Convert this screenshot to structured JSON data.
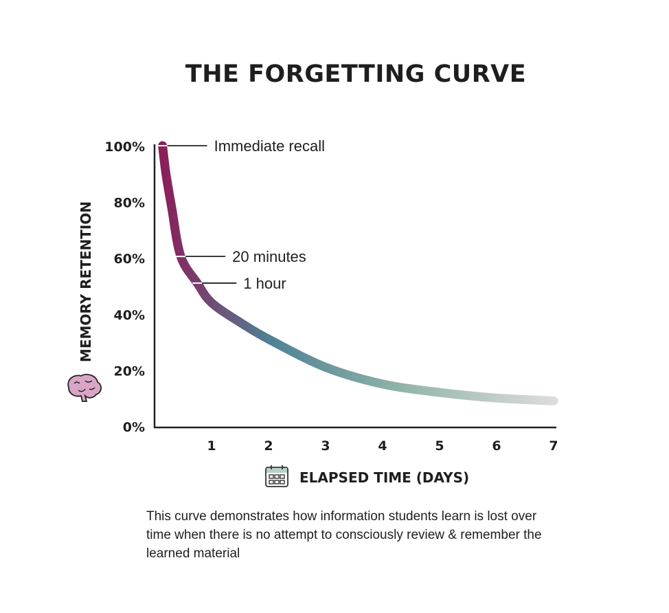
{
  "chart_data": {
    "type": "line",
    "title": "THE FORGETTING CURVE",
    "xlabel": "ELAPSED TIME (DAYS)",
    "ylabel": "MEMORY RETENTION",
    "x_ticks": [
      "1",
      "2",
      "3",
      "4",
      "5",
      "6",
      "7"
    ],
    "y_ticks": [
      "0%",
      "20%",
      "40%",
      "60%",
      "80%",
      "100%"
    ],
    "xlim": [
      0,
      7
    ],
    "ylim": [
      0,
      100
    ],
    "grid": false,
    "points": [
      {
        "x": 0.14,
        "y": 100
      },
      {
        "x": 0.2,
        "y": 90
      },
      {
        "x": 0.3,
        "y": 78
      },
      {
        "x": 0.46,
        "y": 60.5
      },
      {
        "x": 0.75,
        "y": 51
      },
      {
        "x": 1,
        "y": 44
      },
      {
        "x": 1.5,
        "y": 37
      },
      {
        "x": 2,
        "y": 31
      },
      {
        "x": 3,
        "y": 21
      },
      {
        "x": 4,
        "y": 15
      },
      {
        "x": 5,
        "y": 12
      },
      {
        "x": 6,
        "y": 10
      },
      {
        "x": 7,
        "y": 9
      }
    ],
    "annotations": [
      {
        "label": "Immediate recall",
        "x": 0.14,
        "y": 100
      },
      {
        "label": "20 minutes",
        "x": 0.46,
        "y": 60.5
      },
      {
        "label": "1 hour",
        "x": 0.75,
        "y": 51
      }
    ],
    "colors": {
      "start": "#8a1f5a",
      "mid": "#4f8296",
      "late": "#8fb3a8",
      "end": "#dcdcdc",
      "brain": "#d9a6c6",
      "calendar_header": "#b9cfc7"
    }
  },
  "caption": "This curve demonstrates how information students learn is lost over time when there is no attempt to consciously review & remember the learned material",
  "icons": {
    "ylabel_icon": "brain-icon",
    "xlabel_icon": "calendar-icon"
  }
}
